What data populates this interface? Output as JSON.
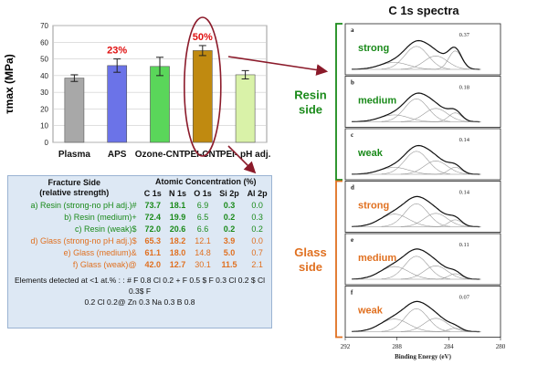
{
  "chart_data": [
    {
      "type": "bar",
      "ylabel": "τmax (MPa)",
      "ylim": [
        0,
        70
      ],
      "yticks": [
        0,
        10,
        20,
        30,
        40,
        50,
        60,
        70
      ],
      "categories": [
        "Plasma",
        "APS",
        "Ozone-CNT",
        "PEI-CNT",
        "PEI- pH adj."
      ],
      "values": [
        38.5,
        46,
        45.5,
        55,
        40.5
      ],
      "errors": [
        2,
        4,
        5.5,
        3,
        2.5
      ],
      "colors": [
        "#a8a8a8",
        "#6b73e8",
        "#5ad65a",
        "#c08a10",
        "#d9f2a8"
      ],
      "annotations": [
        {
          "category": "APS",
          "text": "23%"
        },
        {
          "category": "PEI-CNT",
          "text": "50%"
        }
      ]
    },
    {
      "type": "line",
      "title": "C 1s spectra",
      "xlabel": "Binding Energy (eV)",
      "xlim": [
        292,
        280
      ],
      "xticks": [
        "292",
        "288",
        "284",
        "280"
      ],
      "panels": [
        {
          "letter": "a",
          "label": "strong",
          "ratio": "0.37",
          "group": "resin"
        },
        {
          "letter": "b",
          "label": "medium",
          "ratio": "0.18",
          "group": "resin"
        },
        {
          "letter": "c",
          "label": "weak",
          "ratio": "0.14",
          "group": "resin"
        },
        {
          "letter": "d",
          "label": "strong",
          "ratio": "0.14",
          "group": "glass"
        },
        {
          "letter": "e",
          "label": "medium",
          "ratio": "0.11",
          "group": "glass"
        },
        {
          "letter": "f",
          "label": "weak",
          "ratio": "0.07",
          "group": "glass"
        }
      ],
      "groups": {
        "resin": [
          "Resin",
          "side"
        ],
        "glass": [
          "Glass",
          "side"
        ]
      }
    }
  ],
  "table": {
    "col1_header": [
      "Fracture Side",
      "(relative strength)"
    ],
    "group_header": "Atomic Concentration (%)",
    "columns": [
      "C 1s",
      "N 1s",
      "O 1s",
      "Si 2p",
      "Al 2p"
    ],
    "rows": [
      {
        "label": "a) Resin (strong-no pH adj.)#",
        "group": "resin",
        "values": [
          "73.7",
          "18.1",
          "6.9",
          "0.3",
          "0.0"
        ]
      },
      {
        "label": "b) Resin (medium)+",
        "group": "resin",
        "values": [
          "72.4",
          "19.9",
          "6.5",
          "0.2",
          "0.3"
        ]
      },
      {
        "label": "c) Resin (weak)$",
        "group": "resin",
        "values": [
          "72.0",
          "20.6",
          "6.6",
          "0.2",
          "0.2"
        ]
      },
      {
        "label": "d) Glass (strong-no pH adj.)$",
        "group": "glass",
        "values": [
          "65.3",
          "18.2",
          "12.1",
          "3.9",
          "0.0"
        ]
      },
      {
        "label": "e) Glass (medium)&",
        "group": "glass",
        "values": [
          "61.1",
          "18.0",
          "14.8",
          "5.0",
          "0.7"
        ]
      },
      {
        "label": "f) Glass (weak)@",
        "group": "glass",
        "values": [
          "42.0",
          "12.7",
          "30.1",
          "11.5",
          "2.1"
        ]
      }
    ],
    "footnote": [
      "Elements detected at <1 at.% : : # F 0.8 Cl 0.2  + F 0.5 $ F 0.3 Cl 0.2 $ Cl 0.3$ F",
      "0.2 Cl 0.2@ Zn 0.3 Na 0.3 B 0.8"
    ]
  },
  "colors": {
    "resin": "#1a8a1a",
    "glass": "#e07020",
    "annotation": "#e01010",
    "arrow": "#8b1a2a"
  }
}
